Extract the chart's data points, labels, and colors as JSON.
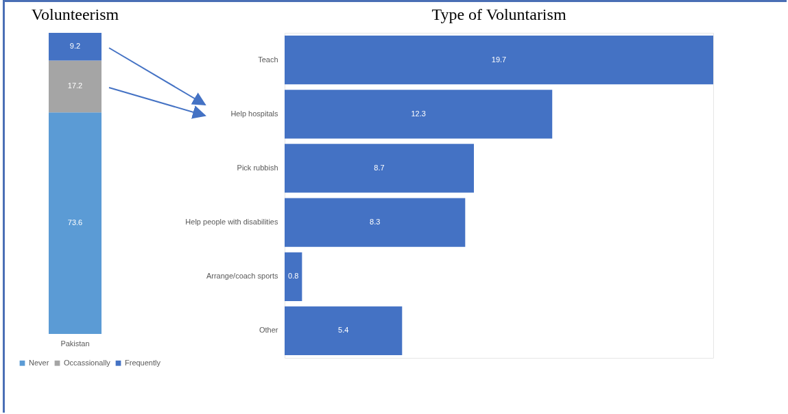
{
  "chart_data": [
    {
      "type": "bar",
      "title": "Volunteerism",
      "categories": [
        "Pakistan"
      ],
      "stacked": true,
      "data_labels": true,
      "legend": "bottom",
      "series": [
        {
          "name": "Never",
          "color": "#5b9bd5",
          "values": [
            73.6
          ]
        },
        {
          "name": "Occassionally",
          "color": "#a5a5a5",
          "values": [
            17.2
          ]
        },
        {
          "name": "Frequently",
          "color": "#4472c4",
          "values": [
            9.2
          ]
        }
      ]
    },
    {
      "type": "bar",
      "title": "Type of Voluntarism",
      "orientation": "horizontal",
      "data_labels": true,
      "color": "#4472c4",
      "categories": [
        "Teach",
        "Help hospitals",
        "Pick rubbish",
        "Help people with disabilities",
        "Arrange/coach sports",
        "Other"
      ],
      "values": [
        19.7,
        12.3,
        8.7,
        8.3,
        0.8,
        5.4
      ]
    }
  ]
}
